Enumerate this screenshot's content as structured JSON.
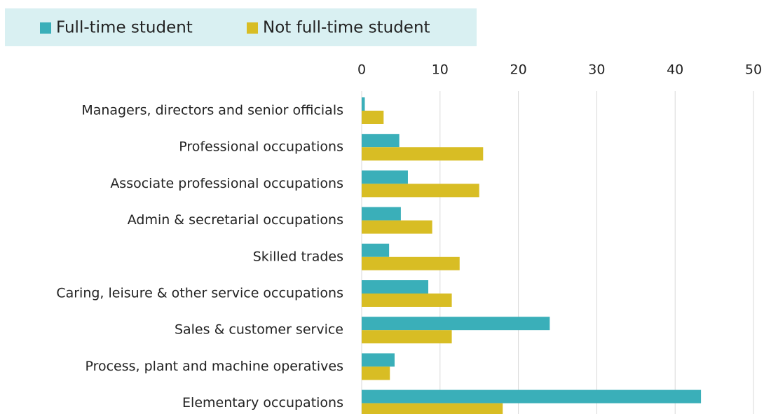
{
  "chart_data": {
    "type": "hbar",
    "categories": [
      "Managers, directors and senior officials",
      "Professional occupations",
      "Associate professional occupations",
      "Admin & secretarial occupations",
      "Skilled trades",
      "Caring, leisure & other service occupations",
      "Sales & customer service",
      "Process, plant and machine operatives",
      "Elementary occupations"
    ],
    "series": [
      {
        "name": "Full-time student",
        "color": "#3aafb9",
        "values": [
          0.4,
          4.8,
          5.9,
          5.0,
          3.5,
          8.5,
          24,
          4.2,
          43.3
        ]
      },
      {
        "name": "Not full-time student",
        "color": "#d8bd24",
        "values": [
          2.8,
          15.5,
          15,
          9.0,
          12.5,
          11.5,
          11.5,
          3.6,
          18
        ]
      }
    ],
    "xlim": [
      0,
      50
    ],
    "xticks": [
      0,
      10,
      20,
      30,
      40,
      50
    ],
    "grid": true,
    "legend": "top-left"
  }
}
